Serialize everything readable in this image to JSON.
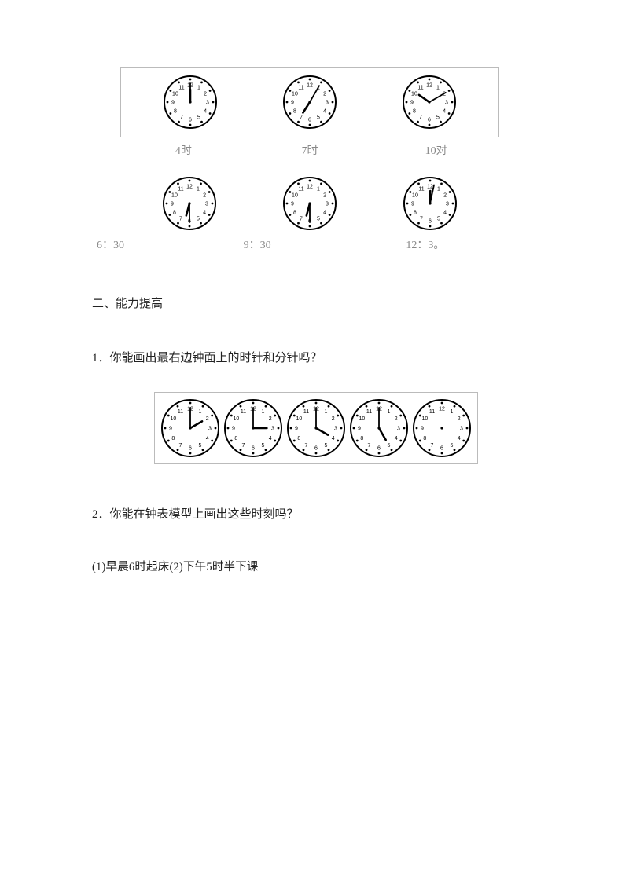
{
  "clocks_row1": [
    {
      "hour": 12,
      "minute": 0,
      "label": "4时"
    },
    {
      "hour": 7,
      "minute": 5,
      "label": "7时"
    },
    {
      "hour": 10,
      "minute": 10,
      "label": "10对"
    }
  ],
  "clocks_row2": [
    {
      "hour": 6,
      "minute": 30,
      "label": "6：30"
    },
    {
      "hour": 6,
      "minute": 30,
      "label": "9：30"
    },
    {
      "hour": 12,
      "minute": 2,
      "label": "12：3。"
    }
  ],
  "section2_heading": "二、能力提高",
  "q1_text": "1．你能画出最右边钟面上的时针和分针吗？",
  "clock_strip": [
    {
      "hour": 2,
      "minute": 0,
      "blank": false
    },
    {
      "hour": 3,
      "minute": 0,
      "blank": false
    },
    {
      "hour": 4,
      "minute": 0,
      "blank": false
    },
    {
      "hour": 5,
      "minute": 0,
      "blank": false
    },
    {
      "hour": 0,
      "minute": 0,
      "blank": true
    }
  ],
  "q2_text": "2．你能在钟表模型上画出这些时刻吗？",
  "q3_text": "(1)早晨6时起床(2)下午5时半下课",
  "clock_style": {
    "size": 72,
    "strip_size": 78,
    "face_color": "#ffffff",
    "border_color": "#000000",
    "tick_color": "#000000",
    "hand_color": "#000000",
    "number_fontsize": 7,
    "hour_hand_len": 16,
    "minute_hand_len": 24,
    "border_width": 2
  }
}
